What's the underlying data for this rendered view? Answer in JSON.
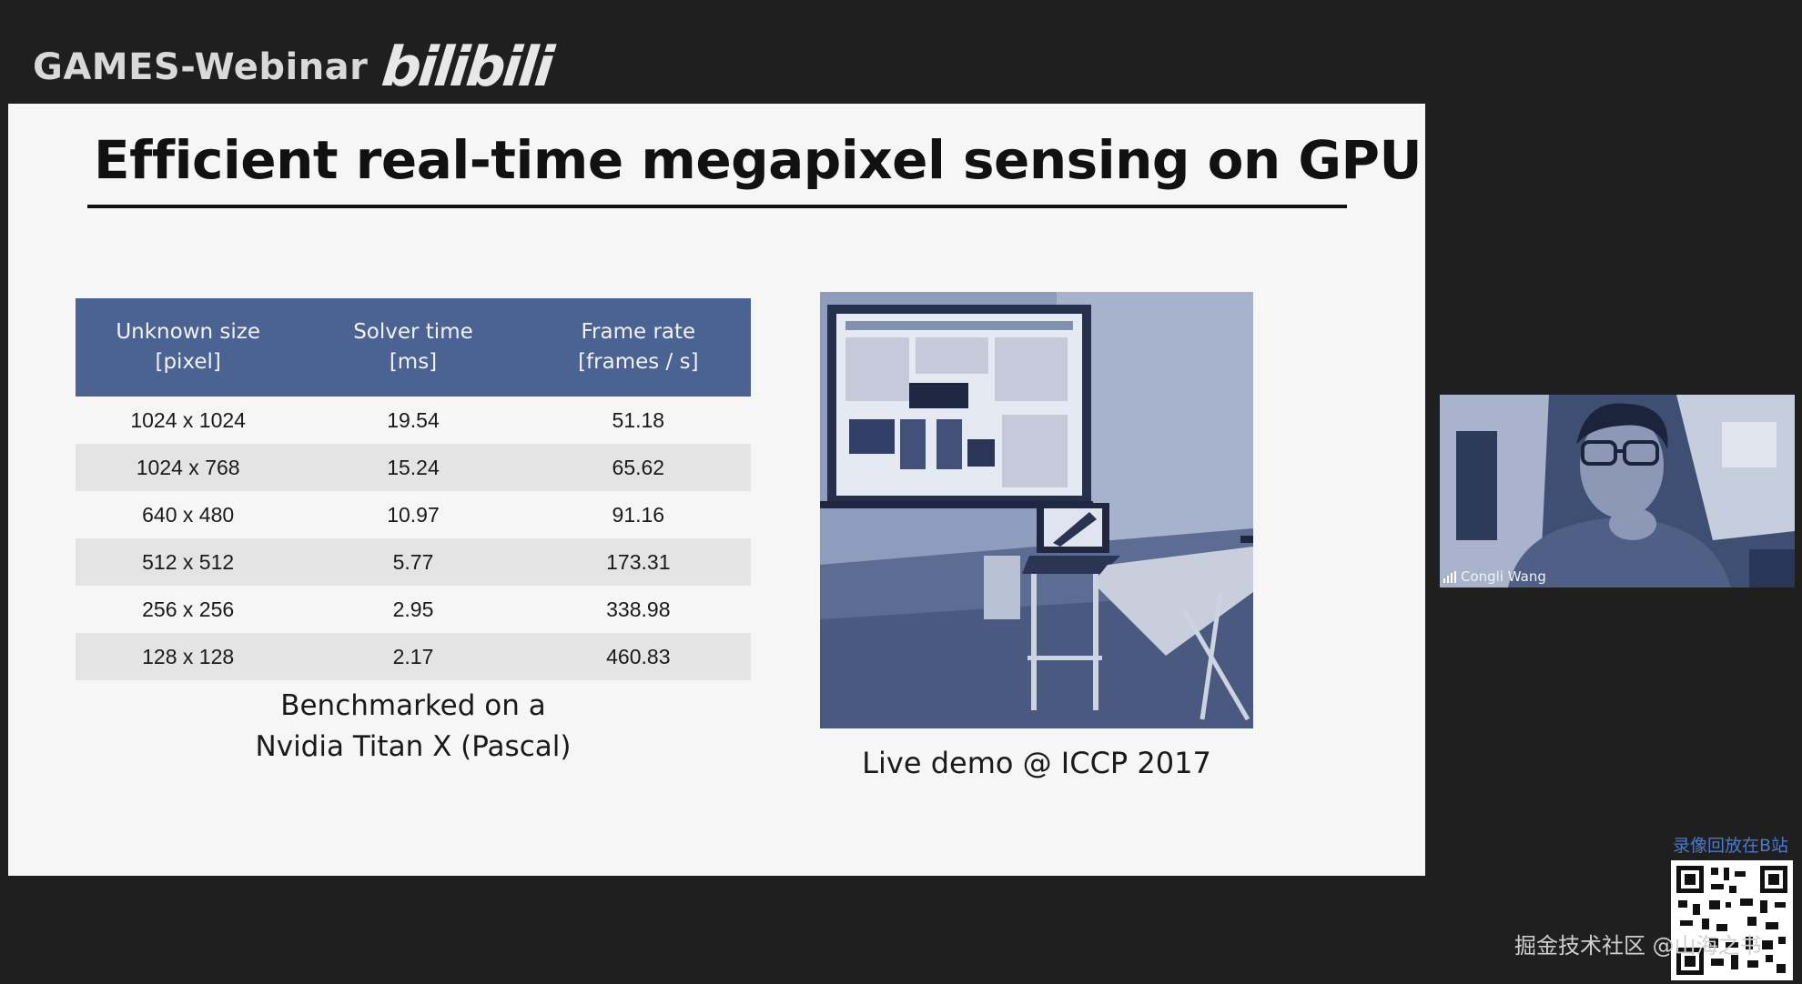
{
  "header": {
    "brand": "GAMES-Webinar",
    "logo_text": "bilibili",
    "logo_icon": "bilibili-logo-icon"
  },
  "slide": {
    "title": "Efficient real-time megapixel sensing on GPU",
    "table": {
      "columns": [
        "Unknown size\n[pixel]",
        "Solver time\n[ms]",
        "Frame rate\n[frames / s]"
      ],
      "rows": [
        [
          "1024 x 1024",
          "19.54",
          "51.18"
        ],
        [
          "1024 x 768",
          "15.24",
          "65.62"
        ],
        [
          "640 x 480",
          "10.97",
          "91.16"
        ],
        [
          "512 x 512",
          "5.77",
          "173.31"
        ],
        [
          "256 x 256",
          "2.95",
          "338.98"
        ],
        [
          "128 x 128",
          "2.17",
          "460.83"
        ]
      ]
    },
    "caption_left": [
      "Benchmarked on a",
      "Nvidia Titan X (Pascal)"
    ],
    "caption_right": "Live demo @ ICCP 2017"
  },
  "webcam": {
    "name": "Congli Wang",
    "icon": "signal-strength-icon"
  },
  "overlay": {
    "replay_notice": "录像回放在B站",
    "watermark": "掘金技术社区 @山海之书"
  },
  "colors": {
    "table_header": "#4a6393",
    "zebra_row": "#e4e4e4",
    "slide_bg": "#f6f6f6",
    "page_bg": "#1f1f1f",
    "replay_text": "#4d79c9"
  }
}
